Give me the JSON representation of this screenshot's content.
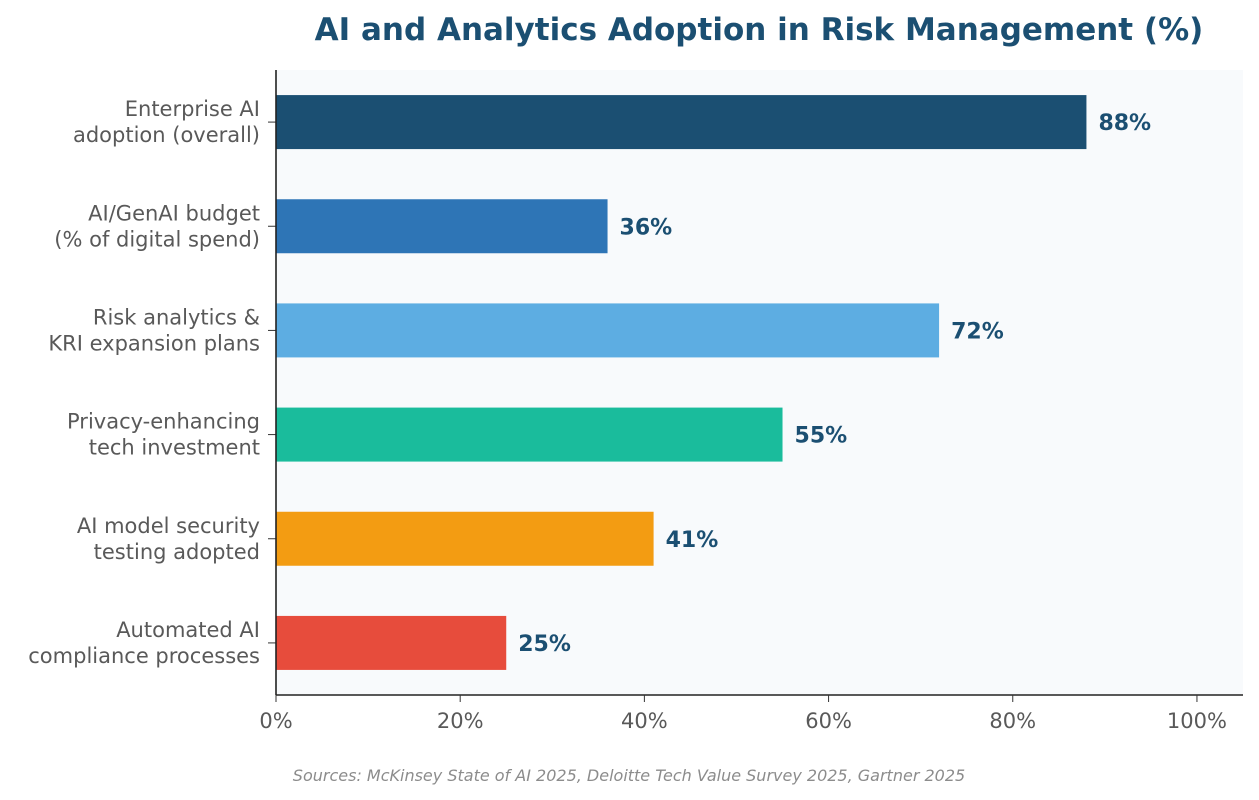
{
  "chart_data": {
    "type": "bar",
    "orientation": "horizontal",
    "title": "AI and Analytics Adoption in Risk Management (%)",
    "categories": [
      [
        "Enterprise AI",
        "adoption (overall)"
      ],
      [
        "AI/GenAI budget",
        "(% of digital spend)"
      ],
      [
        "Risk analytics &",
        "KRI expansion plans"
      ],
      [
        "Privacy-enhancing",
        "tech investment"
      ],
      [
        "AI model security",
        "testing adopted"
      ],
      [
        "Automated AI",
        "compliance processes"
      ]
    ],
    "values": [
      88,
      36,
      72,
      55,
      41,
      25
    ],
    "value_labels": [
      "88%",
      "36%",
      "72%",
      "55%",
      "41%",
      "25%"
    ],
    "colors": [
      "#1b4f72",
      "#2e75b6",
      "#5dade2",
      "#1abc9c",
      "#f39c12",
      "#e74c3c"
    ],
    "xlim": [
      0,
      105
    ],
    "xticks": [
      0,
      20,
      40,
      60,
      80,
      100
    ],
    "xtick_labels": [
      "0%",
      "20%",
      "40%",
      "60%",
      "80%",
      "100%"
    ],
    "grid": false,
    "plot_background": "#f8fafc",
    "source": "Sources: McKinsey State of AI 2025, Deloitte Tech Value Survey 2025, Gartner 2025"
  }
}
